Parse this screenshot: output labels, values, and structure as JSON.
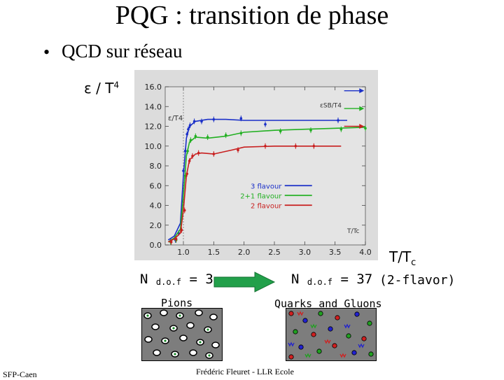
{
  "slide": {
    "title": "PQG : transition de phase",
    "bullet_symbol": "•",
    "bullet_text": "QCD sur réseau",
    "eps_label": "ε / T",
    "eps_label_sup": "4",
    "ttc_label": "T/T",
    "ttc_label_sub": "c",
    "ndof_left_main": "N",
    "ndof_left_sub": "d.o.f",
    "ndof_left_value": "= 3",
    "ndof_right_main": "N",
    "ndof_right_sub": "d.o.f",
    "ndof_right_value": "= 37",
    "two_flavor": "(2-flavor)",
    "pions_label": "Pions",
    "quarks_gluons_label": "Quarks and Gluons",
    "footer_left": "SFP-Caen",
    "footer_center": "Frédéric Fleuret - LLR Ecole"
  },
  "colors": {
    "blue": "#1a2fc8",
    "green": "#22b022",
    "red": "#c81e1e",
    "arrow_green": "#22a04a",
    "plot_bg": "#dcdcdc"
  },
  "chart_data": {
    "type": "line",
    "title": "",
    "xlabel": "T/Tc",
    "ylabel": "ε/T4",
    "xlim": [
      0.7,
      4.0
    ],
    "ylim": [
      0.0,
      16.0
    ],
    "x_ticks": [
      "1.0",
      "1.5",
      "2.0",
      "2.5",
      "3.0",
      "3.5",
      "4.0"
    ],
    "y_ticks": [
      "0.0",
      "2.0",
      "4.0",
      "6.0",
      "8.0",
      "10.0",
      "12.0",
      "14.0",
      "16.0"
    ],
    "inner_ylabel": "ε/T4",
    "inner_xlabel": "T/Tc",
    "sb_label": "εSB/T4",
    "tc_line_x": 1.0,
    "legend_position": "right-middle",
    "series": [
      {
        "name": "3 flavour",
        "color": "#1a2fc8",
        "sb_limit": 15.6,
        "curve": [
          [
            0.75,
            0.5
          ],
          [
            0.85,
            0.9
          ],
          [
            0.95,
            2.2
          ],
          [
            1.0,
            7.0
          ],
          [
            1.05,
            10.8
          ],
          [
            1.1,
            12.0
          ],
          [
            1.2,
            12.5
          ],
          [
            1.4,
            12.7
          ],
          [
            1.7,
            12.7
          ],
          [
            2.0,
            12.6
          ],
          [
            3.0,
            12.6
          ],
          [
            3.7,
            12.6
          ]
        ],
        "points": [
          [
            0.79,
            0.4
          ],
          [
            0.87,
            0.5
          ],
          [
            0.92,
            1.2
          ],
          [
            0.97,
            2.8
          ],
          [
            1.0,
            7.5
          ],
          [
            1.03,
            9.5
          ],
          [
            1.06,
            11.2
          ],
          [
            1.08,
            11.7
          ],
          [
            1.11,
            12.1
          ],
          [
            1.18,
            12.5
          ],
          [
            1.3,
            12.5
          ],
          [
            1.5,
            12.7
          ],
          [
            1.95,
            12.8
          ],
          [
            2.35,
            12.2
          ],
          [
            3.55,
            12.6
          ]
        ]
      },
      {
        "name": "2+1 flavour",
        "color": "#22b022",
        "sb_limit": 13.8,
        "curve": [
          [
            0.75,
            0.3
          ],
          [
            0.85,
            0.7
          ],
          [
            0.95,
            1.6
          ],
          [
            1.0,
            5.0
          ],
          [
            1.05,
            9.0
          ],
          [
            1.1,
            10.4
          ],
          [
            1.2,
            10.9
          ],
          [
            1.4,
            10.8
          ],
          [
            1.7,
            11.0
          ],
          [
            2.0,
            11.4
          ],
          [
            2.5,
            11.6
          ],
          [
            3.0,
            11.7
          ],
          [
            3.5,
            11.8
          ],
          [
            4.0,
            11.9
          ]
        ],
        "points": [
          [
            0.79,
            0.3
          ],
          [
            0.88,
            0.5
          ],
          [
            0.96,
            1.6
          ],
          [
            1.03,
            7.0
          ],
          [
            1.07,
            9.5
          ],
          [
            1.12,
            10.6
          ],
          [
            1.2,
            11.0
          ],
          [
            1.4,
            10.9
          ],
          [
            1.7,
            11.1
          ],
          [
            1.95,
            11.3
          ],
          [
            2.6,
            11.5
          ],
          [
            3.1,
            11.6
          ],
          [
            3.6,
            11.7
          ],
          [
            4.0,
            11.8
          ]
        ]
      },
      {
        "name": "2 flavour",
        "color": "#c81e1e",
        "sb_limit": 12.0,
        "curve": [
          [
            0.75,
            0.3
          ],
          [
            0.85,
            0.6
          ],
          [
            0.95,
            1.2
          ],
          [
            1.0,
            3.5
          ],
          [
            1.05,
            7.0
          ],
          [
            1.1,
            8.6
          ],
          [
            1.2,
            9.2
          ],
          [
            1.3,
            9.3
          ],
          [
            1.5,
            9.2
          ],
          [
            1.8,
            9.6
          ],
          [
            2.0,
            9.9
          ],
          [
            2.5,
            10.0
          ],
          [
            3.0,
            10.0
          ],
          [
            3.6,
            10.0
          ]
        ],
        "points": [
          [
            0.8,
            0.3
          ],
          [
            0.88,
            0.6
          ],
          [
            0.97,
            1.5
          ],
          [
            1.02,
            3.5
          ],
          [
            1.06,
            7.2
          ],
          [
            1.1,
            8.5
          ],
          [
            1.15,
            9.0
          ],
          [
            1.25,
            9.3
          ],
          [
            1.5,
            9.2
          ],
          [
            1.9,
            9.6
          ],
          [
            2.35,
            10.0
          ],
          [
            2.85,
            10.0
          ],
          [
            3.15,
            10.0
          ]
        ]
      }
    ]
  }
}
